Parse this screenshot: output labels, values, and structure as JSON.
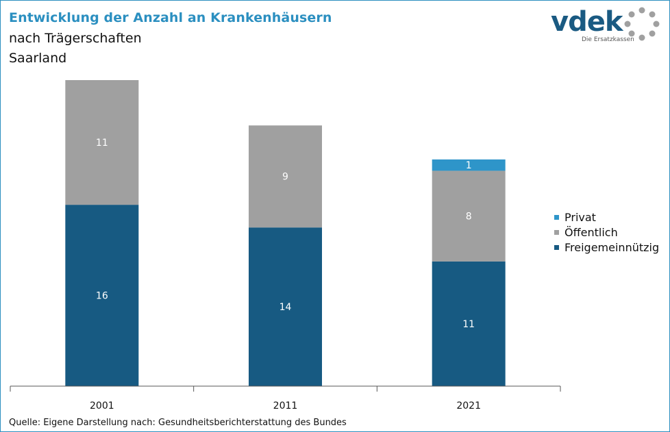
{
  "header": {
    "title": "Entwicklung der Anzahl an Krankenhäusern",
    "subtitle_line1": "nach Trägerschaften",
    "subtitle_line2": "Saarland"
  },
  "logo": {
    "wordmark": "vdek",
    "tagline": "Die Ersatzkassen"
  },
  "source": "Quelle: Eigene Darstellung nach: Gesundheitsberichterstattung  des Bundes",
  "colors": {
    "accent": "#2b8fc0",
    "privat": "#2e95c9",
    "oeffentlich": "#a0a0a0",
    "freigemeinnuetzig": "#175a82"
  },
  "chart_data": {
    "type": "bar",
    "stacked": true,
    "categories": [
      "2001",
      "2011",
      "2021"
    ],
    "series": [
      {
        "name": "Freigemeinnützig",
        "values": [
          16,
          14,
          11
        ],
        "color": "#175a82"
      },
      {
        "name": "Öffentlich",
        "values": [
          11,
          9,
          8
        ],
        "color": "#a0a0a0"
      },
      {
        "name": "Privat",
        "values": [
          0,
          0,
          1
        ],
        "color": "#2e95c9"
      }
    ],
    "data_labels": [
      [
        "16",
        "14",
        "11"
      ],
      [
        "11",
        "9",
        "8"
      ],
      [
        "",
        "",
        "1"
      ]
    ],
    "legend_position": "right",
    "legend_order": [
      "Privat",
      "Öffentlich",
      "Freigemeinnützig"
    ],
    "ylim": [
      0,
      27
    ],
    "grid": false
  }
}
